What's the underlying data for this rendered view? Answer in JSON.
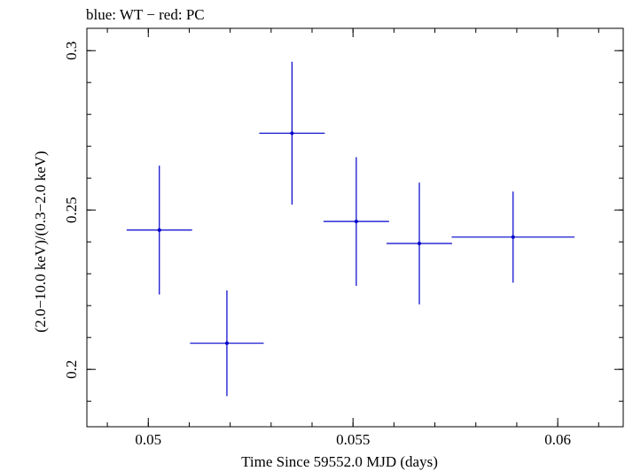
{
  "chart_data": {
    "type": "scatter",
    "title": "blue: WT − red: PC",
    "xlabel": "Time Since 59552.0 MJD (days)",
    "ylabel": "(2.0−10.0 keV)/(0.3−2.0 keV)",
    "xlim": [
      0.0485,
      0.0616
    ],
    "ylim": [
      0.182,
      0.307
    ],
    "x_ticks": [
      0.05,
      0.055,
      0.06
    ],
    "x_tick_labels": [
      "0.05",
      "0.055",
      "0.06"
    ],
    "y_ticks": [
      0.2,
      0.25,
      0.3
    ],
    "y_tick_labels": [
      "0.2",
      "0.25",
      "0.3"
    ],
    "grid": false,
    "series": [
      {
        "color": "#0000cc",
        "points": [
          {
            "x": 0.05027,
            "xerr_lo": 0.0008,
            "xerr_hi": 0.0008,
            "y": 0.2437,
            "yerr_lo": 0.0202,
            "yerr_hi": 0.0202
          },
          {
            "x": 0.05192,
            "xerr_lo": 0.0009,
            "xerr_hi": 0.0009,
            "y": 0.2082,
            "yerr_lo": 0.0166,
            "yerr_hi": 0.0166
          },
          {
            "x": 0.05351,
            "xerr_lo": 0.0008,
            "xerr_hi": 0.0008,
            "y": 0.2741,
            "yerr_lo": 0.0224,
            "yerr_hi": 0.0224
          },
          {
            "x": 0.05508,
            "xerr_lo": 0.0008,
            "xerr_hi": 0.0008,
            "y": 0.2464,
            "yerr_lo": 0.0202,
            "yerr_hi": 0.0202
          },
          {
            "x": 0.05662,
            "xerr_lo": 0.0008,
            "xerr_hi": 0.0008,
            "y": 0.2395,
            "yerr_lo": 0.0191,
            "yerr_hi": 0.0191
          },
          {
            "x": 0.05891,
            "xerr_lo": 0.0015,
            "xerr_hi": 0.0015,
            "y": 0.2415,
            "yerr_lo": 0.0143,
            "yerr_hi": 0.0143
          }
        ]
      }
    ]
  }
}
